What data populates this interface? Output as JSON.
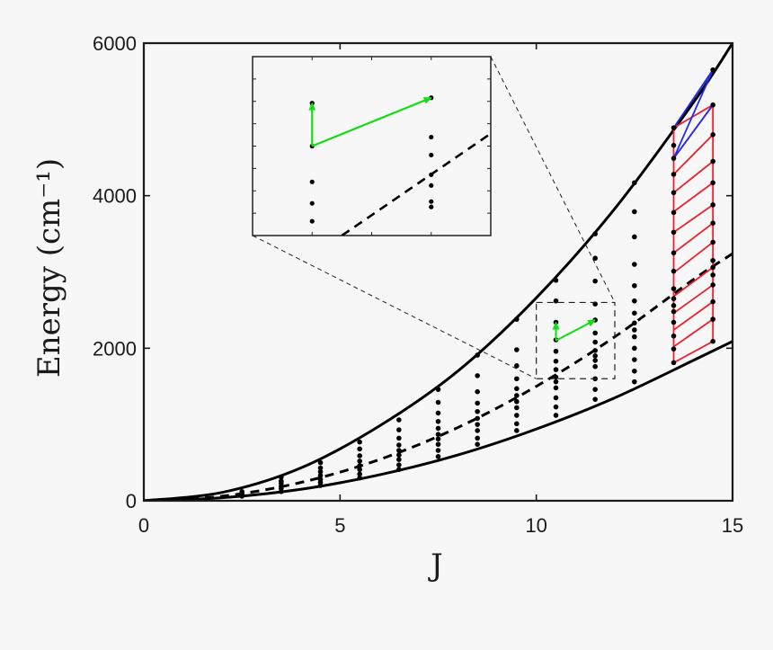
{
  "chart_data": {
    "type": "scatter",
    "title": "",
    "xlabel": "J",
    "ylabel": "Energy (cm⁻¹)",
    "xlim": [
      0,
      15
    ],
    "ylim": [
      0,
      6000
    ],
    "xticks": [
      "0",
      "5",
      "10",
      "15"
    ],
    "yticks": [
      "0",
      "2000",
      "4000",
      "6000"
    ],
    "grid": false,
    "legend": "none",
    "curves": {
      "upper_solid": {
        "x": [
          0,
          2,
          4,
          6,
          8,
          10,
          12,
          14,
          15
        ],
        "y": [
          0,
          110,
          430,
          980,
          1700,
          2660,
          3830,
          5220,
          6000
        ]
      },
      "middle_dashed": {
        "x": [
          0,
          2,
          4,
          6,
          8,
          10,
          12,
          14,
          15
        ],
        "y": [
          0,
          60,
          240,
          540,
          960,
          1500,
          2150,
          2900,
          3240
        ]
      },
      "lower_solid": {
        "x": [
          0,
          2,
          4,
          6,
          8,
          10,
          12,
          14,
          15
        ],
        "y": [
          0,
          40,
          150,
          340,
          600,
          940,
          1350,
          1840,
          2090
        ]
      }
    },
    "levels": [
      {
        "J": 2.5,
        "energies": [
          60,
          80,
          100,
          120
        ]
      },
      {
        "J": 3.5,
        "energies": [
          120,
          160,
          190,
          230,
          260,
          310
        ]
      },
      {
        "J": 4.5,
        "energies": [
          200,
          240,
          280,
          330,
          380,
          430,
          500
        ]
      },
      {
        "J": 5.5,
        "energies": [
          300,
          350,
          410,
          460,
          520,
          590,
          680,
          770
        ]
      },
      {
        "J": 6.5,
        "energies": [
          410,
          470,
          540,
          600,
          660,
          730,
          820,
          930,
          1060
        ]
      },
      {
        "J": 7.5,
        "energies": [
          580,
          660,
          740,
          810,
          870,
          950,
          1040,
          1150,
          1290,
          1460
        ]
      },
      {
        "J": 8.5,
        "energies": [
          740,
          820,
          920,
          1000,
          1080,
          1170,
          1280,
          1430,
          1640,
          1910
        ]
      },
      {
        "J": 9.5,
        "energies": [
          920,
          1010,
          1120,
          1220,
          1300,
          1380,
          1470,
          1600,
          1770,
          1980,
          2380
        ]
      },
      {
        "J": 10.5,
        "energies": [
          1120,
          1230,
          1350,
          1480,
          1560,
          1620,
          1720,
          1830,
          1960,
          2110,
          2340,
          2620,
          2890
        ]
      },
      {
        "J": 11.5,
        "energies": [
          1330,
          1460,
          1600,
          1760,
          1840,
          1900,
          1970,
          2080,
          2200,
          2370,
          2580,
          2880,
          3180,
          3500
        ]
      },
      {
        "J": 12.5,
        "energies": [
          1560,
          1700,
          1850,
          2000,
          2150,
          2240,
          2330,
          2460,
          2620,
          2820,
          3100,
          3460,
          3790,
          4170
        ]
      },
      {
        "J": 13.5,
        "energies": [
          1810,
          1990,
          2160,
          2340,
          2480,
          2560,
          2650,
          2780,
          3010,
          3250,
          3520,
          3780,
          4040,
          4280,
          4490,
          4660,
          4890
        ]
      },
      {
        "J": 14.5,
        "energies": [
          2090,
          2380,
          2610,
          2830,
          2960,
          3060,
          3150,
          3390,
          3640,
          3880,
          4170,
          4450,
          4800,
          5190,
          5650
        ]
      }
    ],
    "red_rhombi": [
      [
        1810,
        2090
      ],
      [
        2020,
        2380
      ],
      [
        2240,
        2610
      ],
      [
        2460,
        2830
      ],
      [
        2680,
        3060
      ],
      [
        2990,
        3390
      ],
      [
        3250,
        3640
      ],
      [
        3520,
        3880
      ],
      [
        3790,
        4170
      ],
      [
        4040,
        4450
      ],
      [
        4280,
        4800
      ],
      [
        4490,
        5190
      ],
      [
        4890,
        5190
      ]
    ],
    "blue_rhombus": [
      4490,
      4890,
      5190,
      5650
    ],
    "green_arrows": [
      {
        "from": [
          10.5,
          2100
        ],
        "to": [
          10.5,
          2340
        ]
      },
      {
        "from": [
          10.5,
          2100
        ],
        "to": [
          11.5,
          2370
        ]
      }
    ],
    "inset": {
      "source_xlim": [
        10,
        12
      ],
      "source_ylim": [
        1600,
        2600
      ],
      "markers": [
        {
          "J": 10.5,
          "energies": [
            1680,
            1780,
            1900,
            2100,
            2340
          ]
        },
        {
          "J": 11.5,
          "energies": [
            1760,
            1790,
            1880,
            1940,
            2050,
            2150,
            2370
          ]
        }
      ],
      "dashed_segment": {
        "x": [
          10.75,
          12
        ],
        "y": [
          1600,
          2170
        ]
      }
    },
    "colors": {
      "curves": "#000000",
      "points": "#000000",
      "arrows": "#11dd11",
      "rhombi_red": "#e8222d",
      "rhombi_blue": "#1f2be8"
    }
  }
}
